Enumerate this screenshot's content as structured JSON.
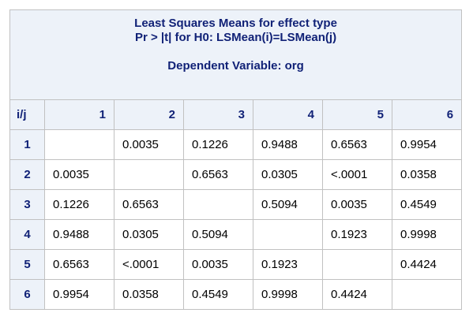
{
  "title": {
    "line1": "Least Squares Means for effect type",
    "line2": "Pr > |t| for H0: LSMean(i)=LSMean(j)",
    "line3": "Dependent Variable: org"
  },
  "corner_label": "i/j",
  "column_headers": [
    "1",
    "2",
    "3",
    "4",
    "5",
    "6"
  ],
  "rows": [
    {
      "label": "1",
      "values": [
        "",
        "0.0035",
        "0.1226",
        "0.9488",
        "0.6563",
        "0.9954"
      ]
    },
    {
      "label": "2",
      "values": [
        "0.0035",
        "",
        "0.6563",
        "0.0305",
        "<.0001",
        "0.0358"
      ]
    },
    {
      "label": "3",
      "values": [
        "0.1226",
        "0.6563",
        "",
        "0.5094",
        "0.0035",
        "0.4549"
      ]
    },
    {
      "label": "4",
      "values": [
        "0.9488",
        "0.0305",
        "0.5094",
        "",
        "0.1923",
        "0.9998"
      ]
    },
    {
      "label": "5",
      "values": [
        "0.6563",
        "<.0001",
        "0.0035",
        "0.1923",
        "",
        "0.4424"
      ]
    },
    {
      "label": "6",
      "values": [
        "0.9954",
        "0.0358",
        "0.4549",
        "0.9998",
        "0.4424",
        ""
      ]
    }
  ],
  "colors": {
    "header_background": "#edf2f9",
    "header_text": "#112277",
    "border": "#c1c1c1"
  }
}
